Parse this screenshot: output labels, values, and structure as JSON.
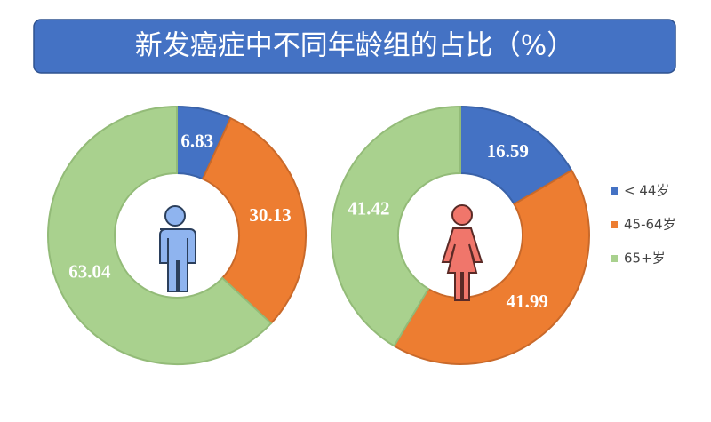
{
  "title": "新发癌症中不同年龄组的占比（%）",
  "chart_data": [
    {
      "type": "pie",
      "donut": true,
      "values": [
        6.83,
        30.13,
        63.04
      ],
      "colors": [
        "#4472c4",
        "#ed7d31",
        "#a9d18e"
      ]
    },
    {
      "type": "pie",
      "donut": true,
      "categories": [
        "< 44岁",
        "45-64岁",
        "65+岁"
      ],
      "values": [
        16.59,
        41.99,
        41.42
      ],
      "colors": [
        "#4472c4",
        "#ed7d31",
        "#a9d18e"
      ],
      "legend": "right"
    }
  ]
}
